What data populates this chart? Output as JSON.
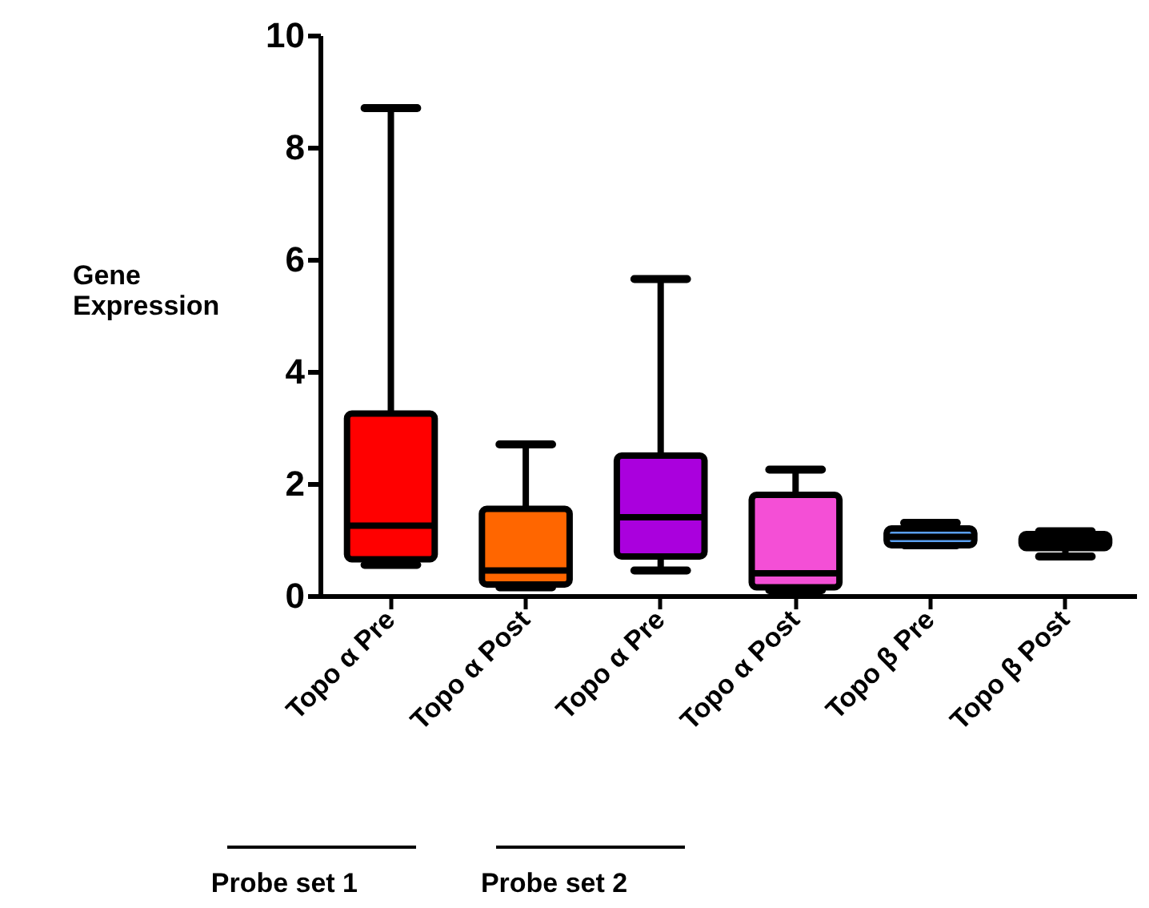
{
  "chart_data": {
    "type": "box",
    "ylabel": "Gene Expression",
    "categories": [
      "Topo α Pre",
      "Topo α Post",
      "Topo α Pre",
      "Topo α Post",
      "Topo β Pre",
      "Topo β Post"
    ],
    "boxes": [
      {
        "low": 0.55,
        "q1": 0.65,
        "median": 1.25,
        "q3": 3.25,
        "high": 8.7
      },
      {
        "low": 0.15,
        "q1": 0.2,
        "median": 0.45,
        "q3": 1.55,
        "high": 2.7
      },
      {
        "low": 0.45,
        "q1": 0.7,
        "median": 1.4,
        "q3": 2.5,
        "high": 5.65
      },
      {
        "low": 0.1,
        "q1": 0.15,
        "median": 0.4,
        "q3": 1.8,
        "high": 2.25
      },
      {
        "low": 0.9,
        "q1": 0.9,
        "median": 1.05,
        "q3": 1.2,
        "high": 1.3
      },
      {
        "low": 0.7,
        "q1": 0.85,
        "median": 0.95,
        "q3": 1.1,
        "high": 1.15
      }
    ],
    "colors": [
      "#ff0000",
      "#ff6600",
      "#aa00dd",
      "#f44fd6",
      "#5aa0f0",
      "#000000"
    ],
    "ylim": [
      0,
      10
    ],
    "yticks": [
      0,
      2,
      4,
      6,
      8,
      10
    ],
    "grid": false,
    "annotations": [
      "Probe set 1",
      "Probe set 2"
    ]
  }
}
